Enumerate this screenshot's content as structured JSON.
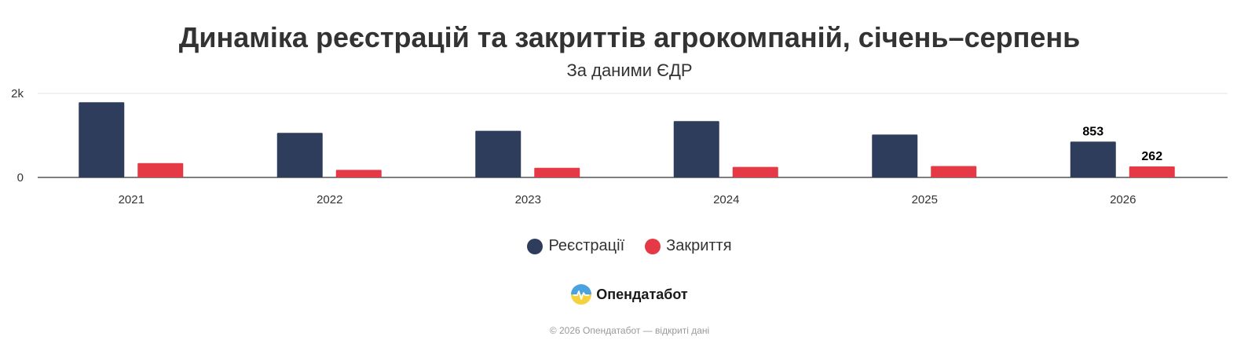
{
  "title": "Динаміка реєстрацій та закриттів агрокомпаній, січень–серпень",
  "subtitle": "За даними ЄДР",
  "brand": {
    "name": "Опендатабот"
  },
  "credits": "© 2026 Опендатабот — відкриті дані",
  "chart_data": {
    "type": "bar",
    "categories": [
      "2021",
      "2022",
      "2023",
      "2024",
      "2025",
      "2026"
    ],
    "series": [
      {
        "name": "Реєстрації",
        "color": "#2e3d5c",
        "values": [
          1790,
          1060,
          1110,
          1340,
          1020,
          853
        ]
      },
      {
        "name": "Закриття",
        "color": "#e63946",
        "values": [
          340,
          180,
          230,
          250,
          270,
          262
        ]
      }
    ],
    "data_labels": [
      {
        "series": 0,
        "category": "2026",
        "text": "853"
      },
      {
        "series": 1,
        "category": "2026",
        "text": "262"
      }
    ],
    "yticks": [
      {
        "value": 0,
        "label": "0"
      },
      {
        "value": 2000,
        "label": "2k"
      }
    ],
    "ylim": [
      0,
      2000
    ],
    "grid": true,
    "legend_position": "bottom-center"
  }
}
